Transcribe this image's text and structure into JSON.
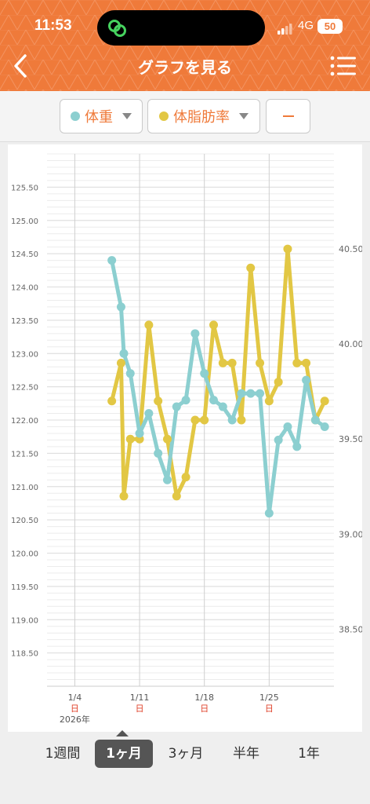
{
  "status_bar": {
    "time": "11:53",
    "network": "4G",
    "battery": "50"
  },
  "header": {
    "title": "グラフを見る"
  },
  "legend": {
    "items": [
      {
        "label": "体重",
        "color": "#8ccfd0"
      },
      {
        "label": "体脂肪率",
        "color": "#e2c744"
      },
      {
        "label": "—"
      }
    ]
  },
  "periods": [
    {
      "label": "1週間",
      "active": false
    },
    {
      "label": "1ヶ月",
      "active": true
    },
    {
      "label": "3ヶ月",
      "active": false
    },
    {
      "label": "半年",
      "active": false
    },
    {
      "label": "1年",
      "active": false
    }
  ],
  "chart_data": {
    "type": "line",
    "grid": true,
    "x_axis": {
      "domain": [
        "2026-01-01",
        "2026-02-01"
      ],
      "ticks": [
        {
          "date": "2026-01-04",
          "label": "1/4",
          "sub": "日",
          "year": "2026年"
        },
        {
          "date": "2026-01-11",
          "label": "1/11",
          "sub": "日"
        },
        {
          "date": "2026-01-18",
          "label": "1/18",
          "sub": "日"
        },
        {
          "date": "2026-01-25",
          "label": "1/25",
          "sub": "日"
        }
      ]
    },
    "y_left": {
      "range": [
        118.0,
        126.0
      ],
      "ticks": [
        "118.50",
        "119.00",
        "119.50",
        "120.00",
        "120.50",
        "121.00",
        "121.50",
        "122.00",
        "122.50",
        "123.00",
        "123.50",
        "124.00",
        "124.50",
        "125.00",
        "125.50"
      ]
    },
    "y_right": {
      "range": [
        38.2,
        41.0
      ],
      "ticks": [
        "38.50",
        "39.00",
        "39.50",
        "40.00",
        "40.50"
      ]
    },
    "series": [
      {
        "name": "体重",
        "axis": "left",
        "color": "#8ccfd0",
        "points": [
          [
            "2026-01-08",
            124.4
          ],
          [
            "2026-01-09",
            123.7
          ],
          [
            "2026-01-09.3",
            123.0
          ],
          [
            "2026-01-10",
            122.7
          ],
          [
            "2026-01-11",
            121.8
          ],
          [
            "2026-01-12",
            122.1
          ],
          [
            "2026-01-13",
            121.5
          ],
          [
            "2026-01-14",
            121.1
          ],
          [
            "2026-01-15",
            122.2
          ],
          [
            "2026-01-16",
            122.3
          ],
          [
            "2026-01-17",
            123.3
          ],
          [
            "2026-01-18",
            122.7
          ],
          [
            "2026-01-19",
            122.3
          ],
          [
            "2026-01-20",
            122.2
          ],
          [
            "2026-01-21",
            122.0
          ],
          [
            "2026-01-22",
            122.4
          ],
          [
            "2026-01-23",
            122.4
          ],
          [
            "2026-01-24",
            122.4
          ],
          [
            "2026-01-25",
            120.6
          ],
          [
            "2026-01-26",
            121.7
          ],
          [
            "2026-01-27",
            121.9
          ],
          [
            "2026-01-28",
            121.6
          ],
          [
            "2026-01-29",
            122.6
          ],
          [
            "2026-01-30",
            122.0
          ],
          [
            "2026-01-31",
            121.9
          ]
        ]
      },
      {
        "name": "体脂肪率",
        "axis": "right",
        "color": "#e2c744",
        "points": [
          [
            "2026-01-08",
            39.7
          ],
          [
            "2026-01-09",
            39.9
          ],
          [
            "2026-01-09.3",
            39.2
          ],
          [
            "2026-01-10",
            39.5
          ],
          [
            "2026-01-11",
            39.5
          ],
          [
            "2026-01-12",
            40.1
          ],
          [
            "2026-01-13",
            39.7
          ],
          [
            "2026-01-14",
            39.5
          ],
          [
            "2026-01-15",
            39.2
          ],
          [
            "2026-01-16",
            39.3
          ],
          [
            "2026-01-17",
            39.6
          ],
          [
            "2026-01-18",
            39.6
          ],
          [
            "2026-01-19",
            40.1
          ],
          [
            "2026-01-20",
            39.9
          ],
          [
            "2026-01-21",
            39.9
          ],
          [
            "2026-01-22",
            39.6
          ],
          [
            "2026-01-23",
            40.4
          ],
          [
            "2026-01-24",
            39.9
          ],
          [
            "2026-01-25",
            39.7
          ],
          [
            "2026-01-26",
            39.8
          ],
          [
            "2026-01-27",
            40.5
          ],
          [
            "2026-01-28",
            39.9
          ],
          [
            "2026-01-29",
            39.9
          ],
          [
            "2026-01-30",
            39.6
          ],
          [
            "2026-01-31",
            39.7
          ]
        ]
      }
    ]
  }
}
